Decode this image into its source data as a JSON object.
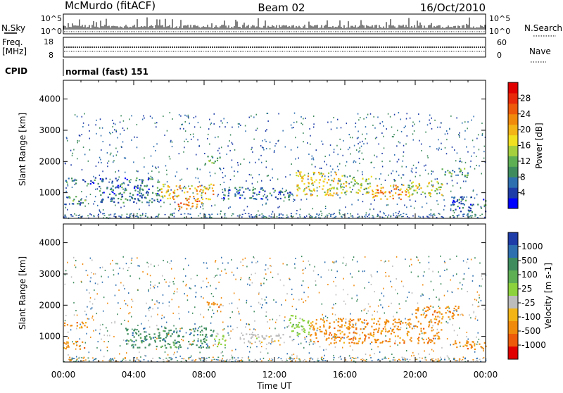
{
  "header": {
    "station": "McMurdo (fitACF)",
    "beam": "Beam 02",
    "date": "16/Oct/2010"
  },
  "aux_panels": {
    "nsky_label": "N.Sky",
    "nsky_ticks": [
      "10^5",
      "10^0"
    ],
    "nsearch_label": "N.Search",
    "nsearch_ticks": [
      "10^5",
      "10^0"
    ],
    "freq_label_top": "Freq.",
    "freq_label_bottom": "[MHz]",
    "freq_ticks": [
      "18",
      "8"
    ],
    "nave_label": "Nave",
    "nave_ticks": [
      "60",
      "0"
    ],
    "cpid_label": "CPID",
    "cpid_value": "normal (fast) 151"
  },
  "chart_data": [
    {
      "type": "heatmap",
      "quantity": "Power",
      "ylabel": "Slant Range [km]",
      "xlabel": "",
      "ylim": [
        180,
        4600
      ],
      "xlim": [
        0,
        24
      ],
      "yticks": [
        "1000",
        "2000",
        "3000",
        "4000"
      ],
      "colorbar_label": "Power [dB]",
      "colorbar_ticks": [
        "4",
        "8",
        "12",
        "16",
        "20",
        "24",
        "28"
      ],
      "colorbar_range": [
        0,
        32
      ],
      "colors": [
        "#0000ff",
        "#1e3ca8",
        "#2e6fb0",
        "#3e8c5e",
        "#5eae54",
        "#a6cf3e",
        "#f0e020",
        "#f2b416",
        "#f08a0c",
        "#ec5a0a",
        "#e82a0a",
        "#e00000"
      ],
      "regions": [
        {
          "t": [
            0,
            1.3
          ],
          "r": [
            600,
            900
          ],
          "level": 8
        },
        {
          "t": [
            0,
            2.2
          ],
          "r": [
            1300,
            1500
          ],
          "level": 6
        },
        {
          "t": [
            2,
            5.5
          ],
          "r": [
            700,
            1500
          ],
          "level": 6
        },
        {
          "t": [
            5.5,
            8.5
          ],
          "r": [
            800,
            1300
          ],
          "level": 20
        },
        {
          "t": [
            6.5,
            8
          ],
          "r": [
            500,
            800
          ],
          "level": 26
        },
        {
          "t": [
            8,
            9
          ],
          "r": [
            1950,
            2200
          ],
          "level": 10
        },
        {
          "t": [
            9,
            13
          ],
          "r": [
            800,
            1200
          ],
          "level": 6
        },
        {
          "t": [
            13.2,
            15.5
          ],
          "r": [
            900,
            1700
          ],
          "level": 18
        },
        {
          "t": [
            15.5,
            17.5
          ],
          "r": [
            1000,
            1600
          ],
          "level": 14
        },
        {
          "t": [
            17.5,
            19.5
          ],
          "r": [
            800,
            1300
          ],
          "level": 22
        },
        {
          "t": [
            19.5,
            21.5
          ],
          "r": [
            900,
            1400
          ],
          "level": 16
        },
        {
          "t": [
            21.5,
            23
          ],
          "r": [
            1500,
            1800
          ],
          "level": 10
        },
        {
          "t": [
            22,
            24
          ],
          "r": [
            400,
            900
          ],
          "level": 6
        }
      ]
    },
    {
      "type": "heatmap",
      "quantity": "Velocity",
      "ylabel": "Slant Range [km]",
      "xlabel": "Time UT",
      "ylim": [
        180,
        4600
      ],
      "xlim": [
        0,
        24
      ],
      "yticks": [
        "1000",
        "2000",
        "3000",
        "4000"
      ],
      "xticks": [
        "00:00",
        "04:00",
        "08:00",
        "12:00",
        "16:00",
        "20:00",
        "00:00"
      ],
      "colorbar_label": "Velocity [m s-1]",
      "colorbar_ticks": [
        "1000",
        "500",
        "100",
        "25",
        "-25",
        "-100",
        "-500",
        "-1000"
      ],
      "colors": [
        "#1e3ca8",
        "#2e6fb0",
        "#3e8c5e",
        "#5eae54",
        "#8cd23c",
        "#bcbcbc",
        "#f2b416",
        "#f08a0c",
        "#ec5a0a",
        "#e00000"
      ],
      "regions": [
        {
          "t": [
            0,
            1.2
          ],
          "r": [
            600,
            900
          ],
          "level": "-100"
        },
        {
          "t": [
            0,
            1.5
          ],
          "r": [
            1300,
            1500
          ],
          "level": "-100"
        },
        {
          "t": [
            3.5,
            8.5
          ],
          "r": [
            650,
            1300
          ],
          "level": "100"
        },
        {
          "t": [
            8.5,
            9.2
          ],
          "r": [
            700,
            1100
          ],
          "level": "25"
        },
        {
          "t": [
            8,
            9
          ],
          "r": [
            1950,
            2150
          ],
          "level": "-100"
        },
        {
          "t": [
            10,
            13
          ],
          "r": [
            800,
            1100
          ],
          "level": "-25"
        },
        {
          "t": [
            12.8,
            14
          ],
          "r": [
            1000,
            1700
          ],
          "level": "25"
        },
        {
          "t": [
            14,
            21.5
          ],
          "r": [
            800,
            1600
          ],
          "level": "-100"
        },
        {
          "t": [
            20,
            22.5
          ],
          "r": [
            1600,
            2000
          ],
          "level": "-100"
        },
        {
          "t": [
            22,
            24
          ],
          "r": [
            600,
            900
          ],
          "level": "-100"
        }
      ]
    }
  ]
}
